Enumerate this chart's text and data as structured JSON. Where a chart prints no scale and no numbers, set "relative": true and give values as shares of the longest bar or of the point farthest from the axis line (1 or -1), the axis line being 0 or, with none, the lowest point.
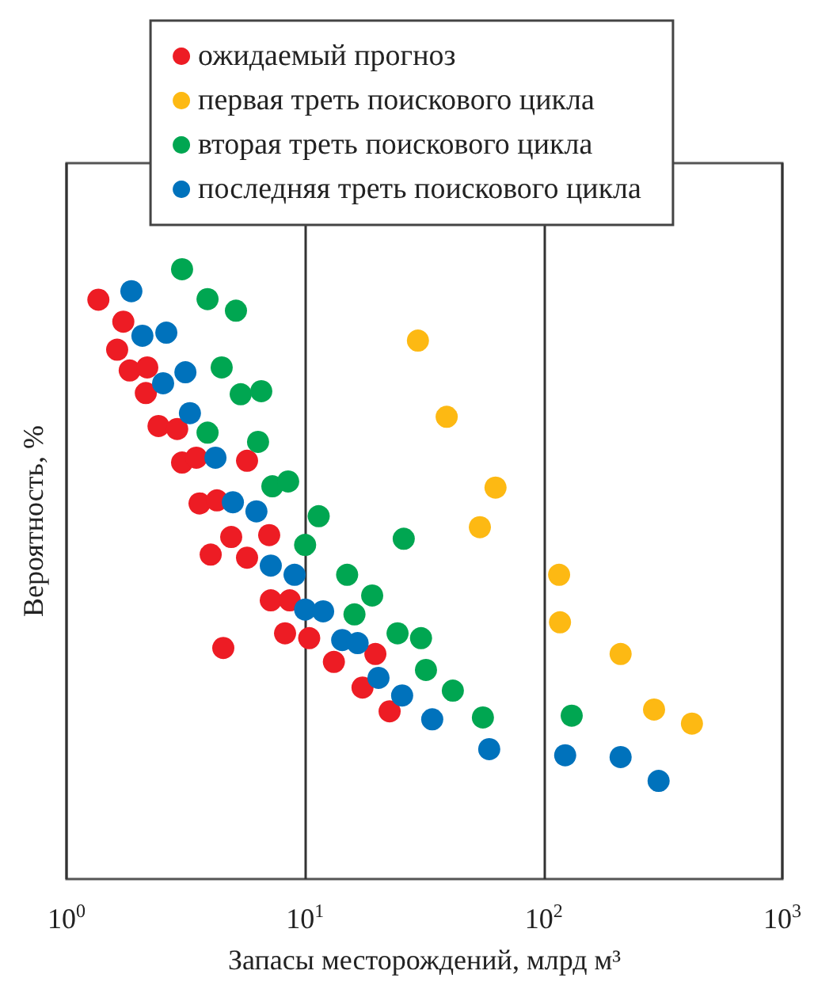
{
  "chart_data": {
    "type": "scatter",
    "relative": true,
    "log": "x",
    "xlabel": "Запасы месторождений, млрд м³",
    "ylabel": "Вероятность, %",
    "xlim": [
      1,
      1000
    ],
    "xticks": [
      {
        "value": 1,
        "label": "10$^{0}$"
      },
      {
        "value": 10,
        "label": "10$^{1}$"
      },
      {
        "value": 100,
        "label": "10$^{2}$"
      },
      {
        "value": 1000,
        "label": "10$^{3}$"
      }
    ],
    "grid": "x",
    "legend": "top",
    "marker": "circle",
    "tick_labels": "x",
    "series": [
      {
        "name": "ожидаемый прогноз",
        "color": "#ed1c24",
        "x": [
          1.36,
          1.73,
          1.63,
          1.84,
          2.18,
          2.15,
          2.43,
          2.91,
          3.05,
          3.5,
          5.71,
          3.61,
          4.27,
          4.9,
          7.07,
          4.02,
          5.71,
          7.18,
          8.62,
          8.24,
          10.4,
          4.54,
          19.7,
          13.2,
          17.4,
          22.6
        ],
        "values": [
          0.95,
          0.914,
          0.868,
          0.834,
          0.839,
          0.797,
          0.743,
          0.738,
          0.683,
          0.691,
          0.686,
          0.616,
          0.621,
          0.561,
          0.564,
          0.532,
          0.527,
          0.457,
          0.457,
          0.403,
          0.395,
          0.379,
          0.369,
          0.356,
          0.314,
          0.275
        ]
      },
      {
        "name": "первая треть поискового цикла",
        "color": "#fdb913",
        "x": [
          29.7,
          39.2,
          62.8,
          54,
          116,
          117,
          210,
          290,
          418
        ],
        "values": [
          0.883,
          0.758,
          0.642,
          0.577,
          0.499,
          0.421,
          0.369,
          0.278,
          0.255
        ]
      },
      {
        "name": "вторая треть поискового цикла",
        "color": "#00a651",
        "x": [
          3.05,
          3.9,
          5.13,
          4.47,
          5.37,
          6.55,
          3.9,
          6.35,
          7.29,
          8.49,
          11.4,
          10,
          25.9,
          15,
          19.1,
          16.1,
          24.4,
          30.6,
          32.1,
          41.6,
          55.6,
          131
        ],
        "values": [
          1,
          0.951,
          0.932,
          0.839,
          0.795,
          0.8,
          0.732,
          0.717,
          0.644,
          0.652,
          0.595,
          0.548,
          0.558,
          0.499,
          0.465,
          0.434,
          0.403,
          0.395,
          0.343,
          0.309,
          0.265,
          0.268
        ]
      },
      {
        "name": "последняя треть поискового цикла",
        "color": "#0072bc",
        "x": [
          1.87,
          2.08,
          2.62,
          3.15,
          2.54,
          3.29,
          4.21,
          4.98,
          6.25,
          7.18,
          9.03,
          10,
          11.9,
          14.3,
          16.6,
          20.3,
          25.5,
          34.1,
          59.1,
          123,
          210,
          303
        ],
        "values": [
          0.964,
          0.891,
          0.896,
          0.831,
          0.813,
          0.764,
          0.691,
          0.618,
          0.603,
          0.514,
          0.499,
          0.442,
          0.439,
          0.392,
          0.387,
          0.33,
          0.301,
          0.262,
          0.213,
          0.203,
          0.2,
          0.161
        ]
      }
    ]
  }
}
